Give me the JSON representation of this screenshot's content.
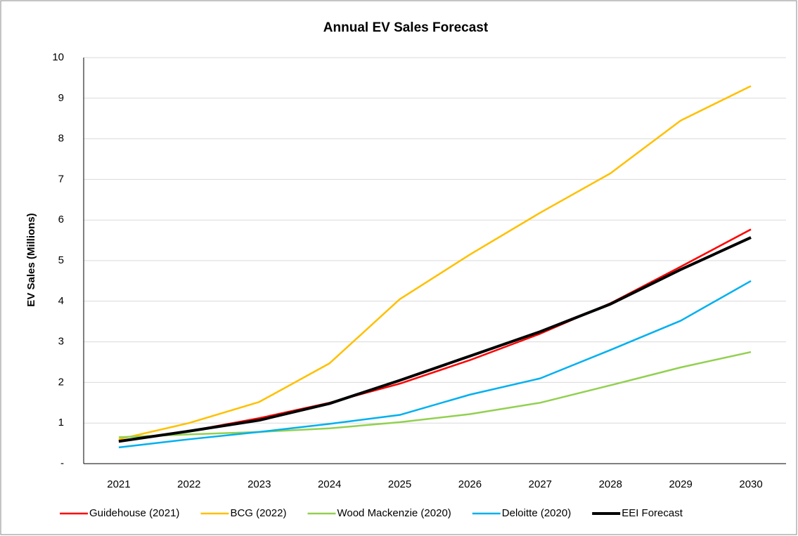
{
  "chart_data": {
    "type": "line",
    "title": "Annual EV Sales Forecast",
    "y_label": "EV Sales (Millions)",
    "categories": [
      "2021",
      "2022",
      "2023",
      "2024",
      "2025",
      "2026",
      "2027",
      "2028",
      "2029",
      "2030"
    ],
    "series": [
      {
        "name": "Guidehouse (2021)",
        "color": "#ff0000",
        "values": [
          0.55,
          0.8,
          1.12,
          1.5,
          1.97,
          2.55,
          3.2,
          3.95,
          4.85,
          5.77
        ]
      },
      {
        "name": "BCG (2022)",
        "color": "#ffc000",
        "values": [
          0.6,
          1.0,
          1.52,
          2.47,
          4.05,
          5.15,
          6.18,
          7.15,
          8.45,
          9.3
        ]
      },
      {
        "name": "Wood Mackenzie (2020)",
        "color": "#92d050",
        "values": [
          0.65,
          0.72,
          0.78,
          0.87,
          1.02,
          1.22,
          1.5,
          1.93,
          2.37,
          2.75
        ]
      },
      {
        "name": "Deloitte (2020)",
        "color": "#00b0f0",
        "values": [
          0.4,
          0.6,
          0.78,
          0.98,
          1.2,
          1.7,
          2.1,
          2.8,
          3.52,
          4.5
        ]
      },
      {
        "name": "EEI Forecast",
        "color": "#000000",
        "values": [
          0.55,
          0.8,
          1.07,
          1.48,
          2.05,
          2.65,
          3.25,
          3.93,
          4.78,
          5.57
        ]
      }
    ],
    "ylim": [
      0,
      10
    ],
    "yticks": [
      {
        "value": 0,
        "label": "-"
      },
      1,
      2,
      3,
      4,
      5,
      6,
      7,
      8,
      9,
      10
    ],
    "grid": true,
    "legend": "bottom"
  }
}
